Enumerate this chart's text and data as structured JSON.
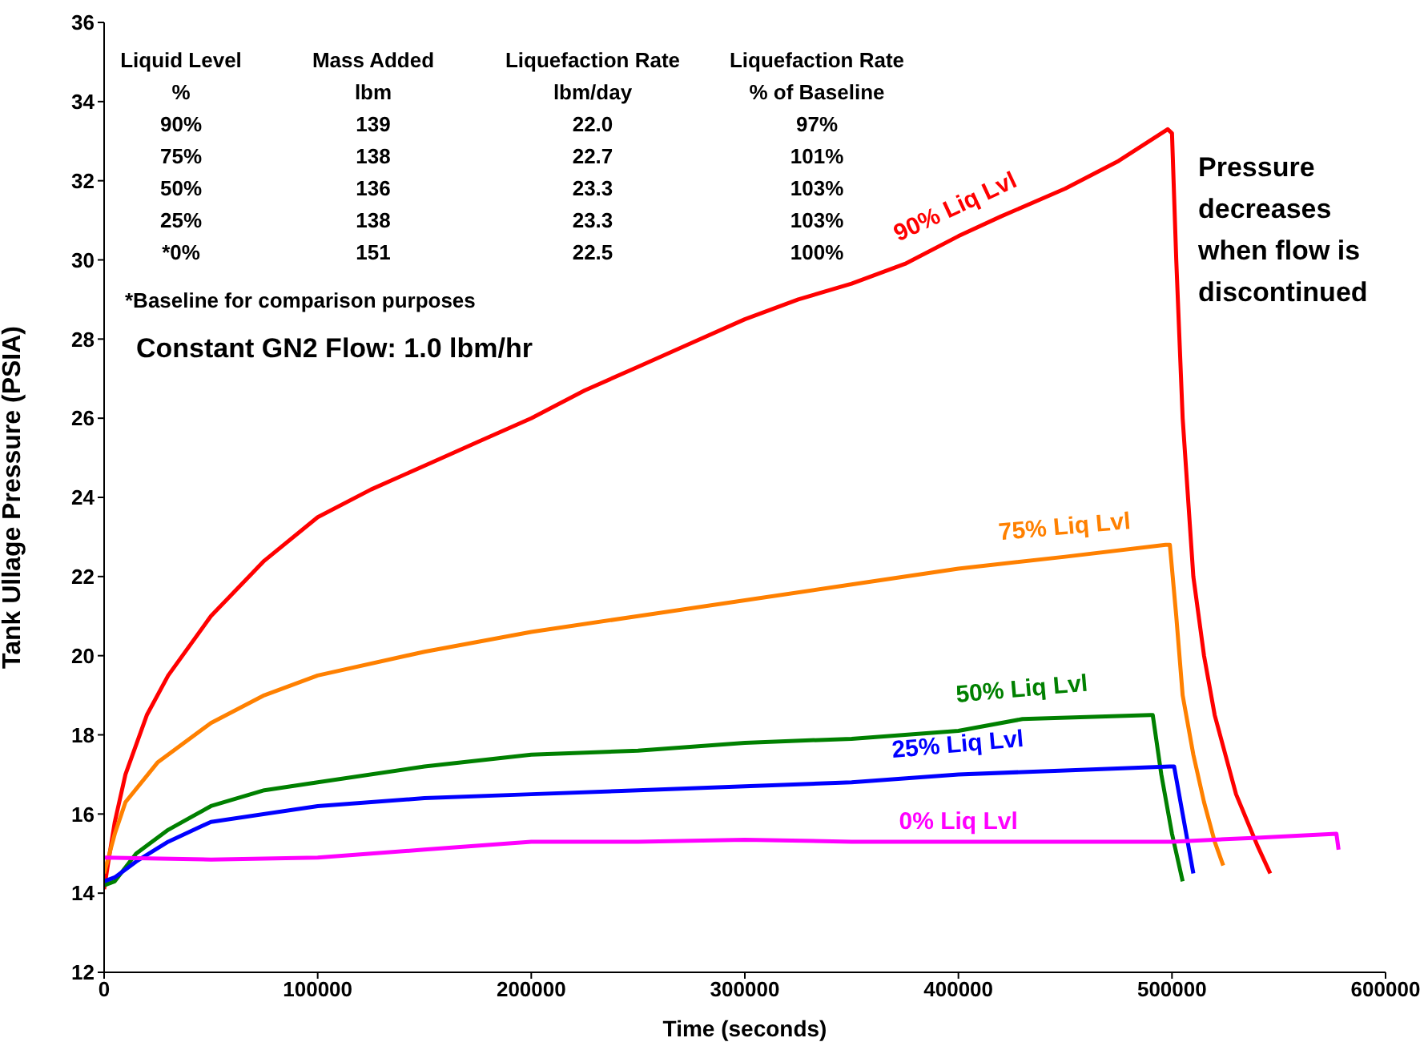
{
  "chart_data": {
    "type": "line",
    "xlabel": "Time (seconds)",
    "ylabel": "Tank Ullage Pressure (PSIA)",
    "xlim": [
      0,
      600000
    ],
    "xticks": [
      0,
      100000,
      200000,
      300000,
      400000,
      500000,
      600000
    ],
    "ylim": [
      12,
      36
    ],
    "yticks": [
      12,
      14,
      16,
      18,
      20,
      22,
      24,
      26,
      28,
      30,
      32,
      34,
      36
    ],
    "grid": false,
    "legend": false,
    "marker": "none",
    "line_style": "solid",
    "series": [
      {
        "name": "90% Liq Lvl",
        "color": "#ff0000",
        "x": [
          0,
          2000,
          5000,
          10000,
          20000,
          30000,
          50000,
          75000,
          100000,
          125000,
          150000,
          175000,
          200000,
          225000,
          250000,
          275000,
          300000,
          325000,
          350000,
          375000,
          400000,
          420000,
          450000,
          475000,
          498000,
          500000,
          502000,
          505000,
          510000,
          515000,
          520000,
          530000,
          540000,
          546000
        ],
        "values": [
          14.1,
          14.8,
          15.8,
          17,
          18.5,
          19.5,
          21,
          22.4,
          23.5,
          24.2,
          24.8,
          25.4,
          26,
          26.7,
          27.3,
          27.9,
          28.5,
          29,
          29.4,
          29.9,
          30.6,
          31.1,
          31.8,
          32.5,
          33.3,
          33.2,
          30,
          26,
          22,
          20,
          18.5,
          16.5,
          15.2,
          14.5
        ]
      },
      {
        "name": "75% Liq Lvl",
        "color": "#ff8000",
        "x": [
          0,
          5000,
          10000,
          25000,
          50000,
          75000,
          100000,
          150000,
          200000,
          250000,
          300000,
          350000,
          400000,
          450000,
          497000,
          499000,
          502000,
          505000,
          510000,
          515000,
          520000,
          524000
        ],
        "values": [
          14.5,
          15.5,
          16.3,
          17.3,
          18.3,
          19,
          19.5,
          20.1,
          20.6,
          21,
          21.4,
          21.8,
          22.2,
          22.5,
          22.8,
          22.8,
          21,
          19,
          17.5,
          16.3,
          15.3,
          14.7
        ]
      },
      {
        "name": "50% Liq Lvl",
        "color": "#008000",
        "x": [
          0,
          5000,
          15000,
          30000,
          50000,
          75000,
          100000,
          150000,
          200000,
          250000,
          300000,
          350000,
          400000,
          430000,
          490000,
          491000,
          495000,
          500000,
          505000
        ],
        "values": [
          14.2,
          14.3,
          15,
          15.6,
          16.2,
          16.6,
          16.8,
          17.2,
          17.5,
          17.6,
          17.8,
          17.9,
          18.1,
          18.4,
          18.5,
          18.5,
          17,
          15.5,
          14.3
        ]
      },
      {
        "name": "25% Liq Lvl",
        "color": "#0000ff",
        "x": [
          0,
          5000,
          15000,
          30000,
          50000,
          100000,
          150000,
          200000,
          250000,
          300000,
          350000,
          400000,
          450000,
          499000,
          501000,
          505000,
          510000
        ],
        "values": [
          14.3,
          14.4,
          14.8,
          15.3,
          15.8,
          16.2,
          16.4,
          16.5,
          16.6,
          16.7,
          16.8,
          17,
          17.1,
          17.2,
          17.2,
          16,
          14.5
        ]
      },
      {
        "name": "0% Liq Lvl",
        "color": "#ff00ff",
        "x": [
          0,
          50000,
          100000,
          150000,
          200000,
          250000,
          300000,
          350000,
          400000,
          450000,
          500000,
          540000,
          577000,
          578000
        ],
        "values": [
          14.9,
          14.85,
          14.9,
          15.1,
          15.3,
          15.3,
          15.35,
          15.3,
          15.3,
          15.3,
          15.3,
          15.4,
          15.5,
          15.1
        ]
      }
    ],
    "annotations": [
      "Liquid Level",
      "Mass Added",
      "Liquefaction Rate",
      "Liquefaction Rate",
      "%",
      "lbm",
      "lbm/day",
      "% of Baseline",
      "90%",
      "139",
      "22.0",
      "97%",
      "75%",
      "138",
      "22.7",
      "101%",
      "50%",
      "136",
      "23.3",
      "103%",
      "25%",
      "138",
      "23.3",
      "103%",
      "*0%",
      "151",
      "22.5",
      "100%",
      "*Baseline for comparison purposes",
      "Constant GN2 Flow: 1.0 lbm/hr",
      "Pressure decreases when flow is discontinued"
    ]
  }
}
